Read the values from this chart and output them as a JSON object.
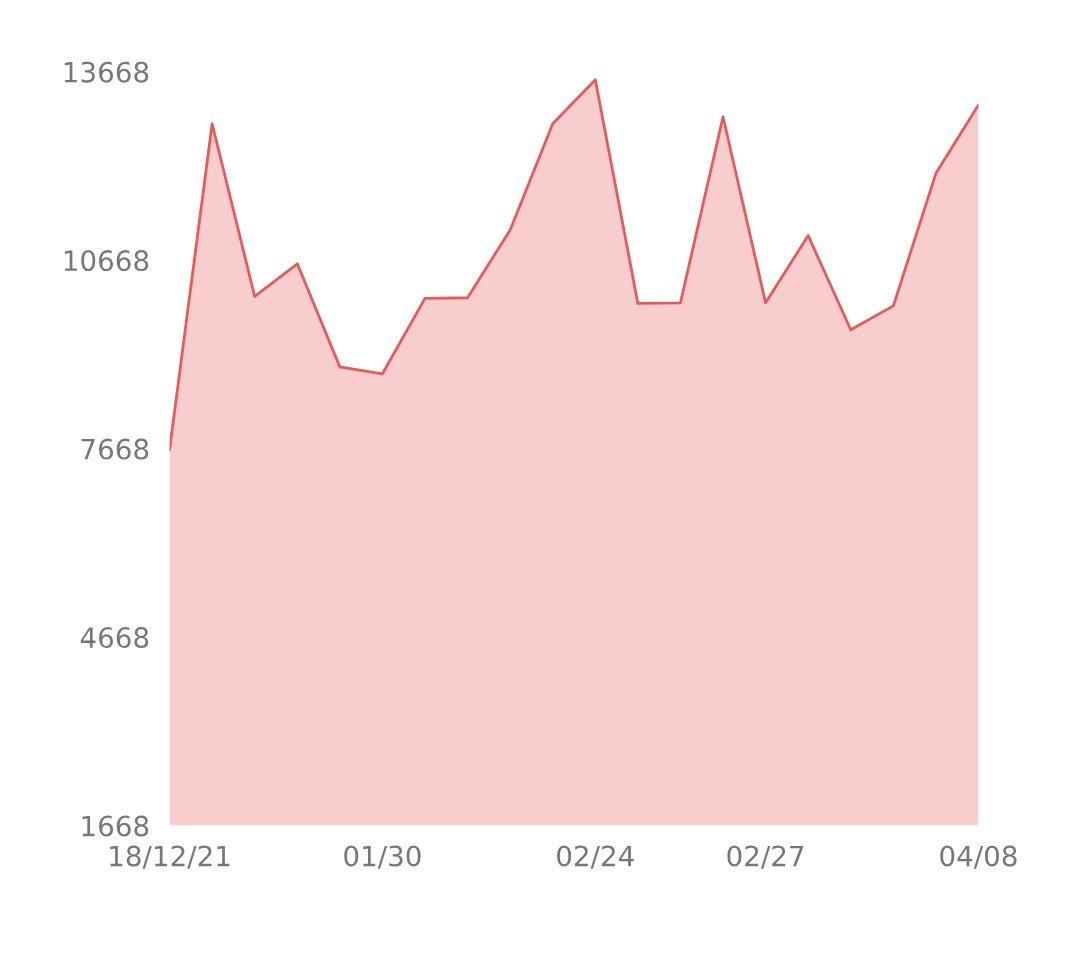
{
  "chart_data": {
    "type": "area",
    "categories": [
      "18/12/21",
      null,
      null,
      null,
      null,
      "01/30",
      null,
      null,
      null,
      null,
      "02/24",
      null,
      null,
      null,
      "02/27",
      null,
      null,
      null,
      null,
      "04/08"
    ],
    "series": [
      {
        "color": "#e85a5a",
        "values": [
          7650,
          12840,
          10090,
          10610,
          8970,
          8860,
          10060,
          10070,
          11150,
          12840,
          13540,
          9980,
          9990,
          12950,
          9990,
          11060,
          9560,
          9940,
          12050,
          13140
        ]
      }
    ],
    "ylim": [
      1668,
      13668
    ],
    "yticks": [
      1668,
      4668,
      7668,
      10668,
      13668
    ],
    "grid": false,
    "legend": false
  }
}
